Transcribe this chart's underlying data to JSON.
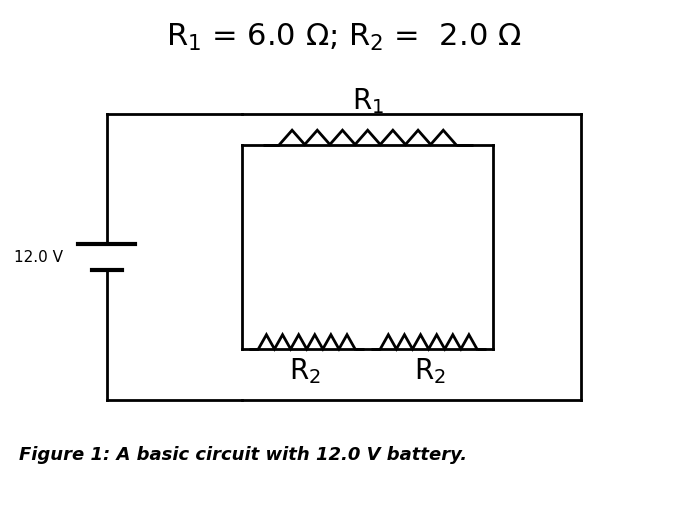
{
  "title": "R$_1$ = 6.0 Ω; R$_2$ =  2.0 Ω",
  "title_fontsize": 22,
  "caption": "Figure 1: A basic circuit with 12.0 V battery.",
  "caption_fontsize": 13,
  "battery_label": "12.0 V",
  "r1_label": "R$_1$",
  "r2_label_left": "R$_2$",
  "r2_label_right": "R$_2$",
  "bg_color": "#ffffff",
  "line_color": "#000000",
  "line_width": 2.0
}
